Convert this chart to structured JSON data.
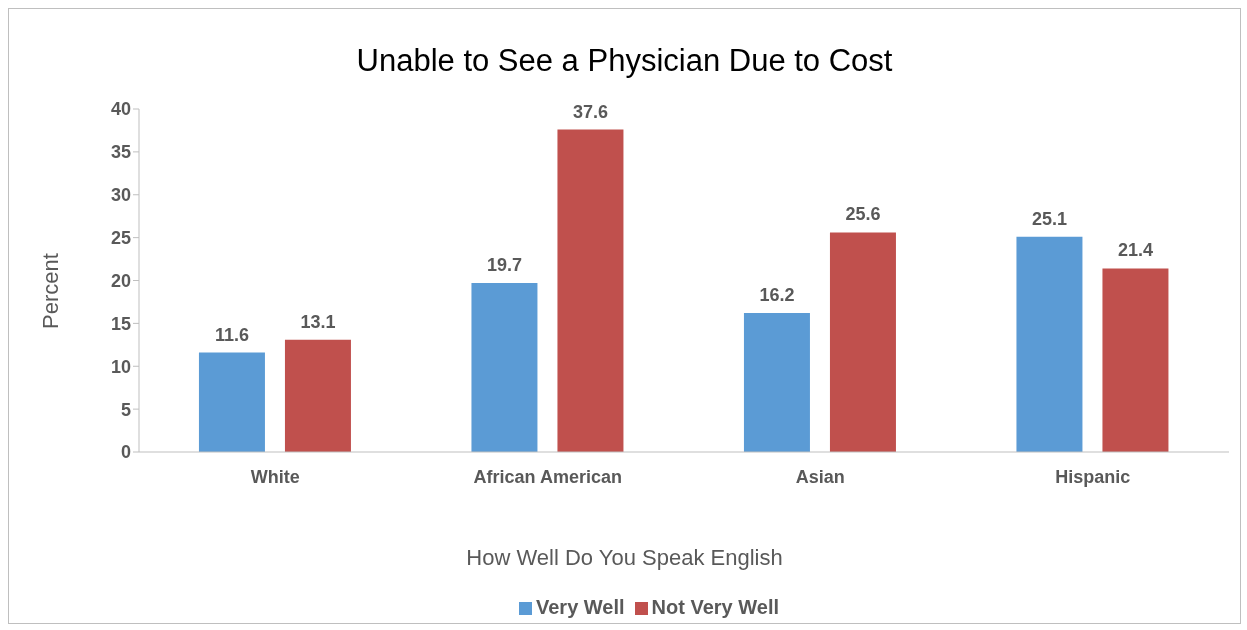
{
  "chart_data": {
    "type": "bar",
    "title": "Unable to See a Physician Due to Cost",
    "xlabel": "How Well Do You Speak English",
    "ylabel": "Percent",
    "categories": [
      "White",
      "African American",
      "Asian",
      "Hispanic"
    ],
    "series": [
      {
        "name": "Very Well",
        "color": "#5b9bd5",
        "values": [
          11.6,
          19.7,
          16.2,
          25.1
        ]
      },
      {
        "name": "Not Very Well",
        "color": "#c0504d",
        "values": [
          13.1,
          37.6,
          25.6,
          21.4
        ]
      }
    ],
    "ylim": [
      0,
      40
    ],
    "yticks": [
      0,
      5,
      10,
      15,
      20,
      25,
      30,
      35,
      40
    ],
    "legend": "bottom",
    "data_labels": true
  }
}
